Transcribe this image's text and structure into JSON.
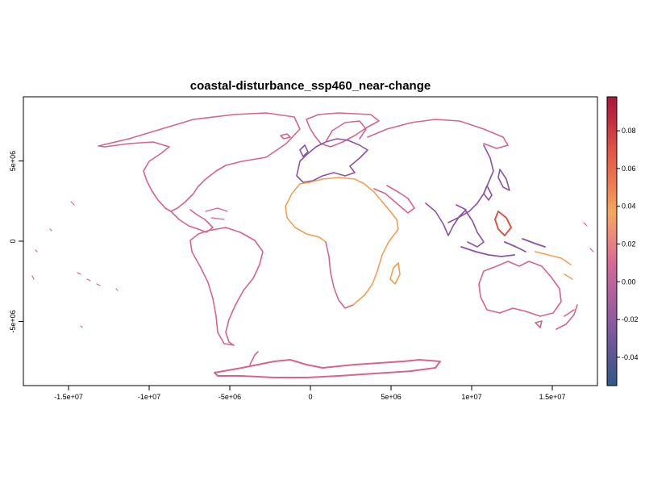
{
  "title": "coastal-disturbance_ssp460_near-change",
  "axes": {
    "x_ticks": [
      {
        "value": -15000000,
        "label": "-1.5e+07"
      },
      {
        "value": -10000000,
        "label": "-1e+07"
      },
      {
        "value": -5000000,
        "label": "-5e+06"
      },
      {
        "value": 0,
        "label": "0"
      },
      {
        "value": 5000000,
        "label": "5e+06"
      },
      {
        "value": 10000000,
        "label": "1e+07"
      },
      {
        "value": 15000000,
        "label": "1.5e+07"
      }
    ],
    "y_ticks": [
      {
        "value": 5000000,
        "label": "5e+06"
      },
      {
        "value": 0,
        "label": "0"
      },
      {
        "value": -5000000,
        "label": "-5e+06"
      }
    ],
    "xlim": [
      -17800000,
      17800000
    ],
    "ylim": [
      -9000000,
      9000000
    ]
  },
  "legend": {
    "range": [
      -0.055,
      0.098
    ],
    "ticks": [
      {
        "value": 0.08,
        "label": "0.08"
      },
      {
        "value": 0.06,
        "label": "0.06"
      },
      {
        "value": 0.04,
        "label": "0.04"
      },
      {
        "value": 0.02,
        "label": "0.02"
      },
      {
        "value": 0.0,
        "label": "0.00"
      },
      {
        "value": -0.02,
        "label": "-0.02"
      },
      {
        "value": -0.04,
        "label": "-0.04"
      }
    ],
    "colors": [
      "#2e5a87",
      "#5b5596",
      "#8a5aa0",
      "#b5619d",
      "#d96b93",
      "#ee8a7c",
      "#f4a85e",
      "#ef7a4f",
      "#e05346",
      "#c42b3f",
      "#a9183b"
    ]
  },
  "map_colors": {
    "typical": "#d5648f",
    "positive": "#f0a055",
    "strong_positive": "#e05448",
    "negative": "#8a55a0"
  }
}
